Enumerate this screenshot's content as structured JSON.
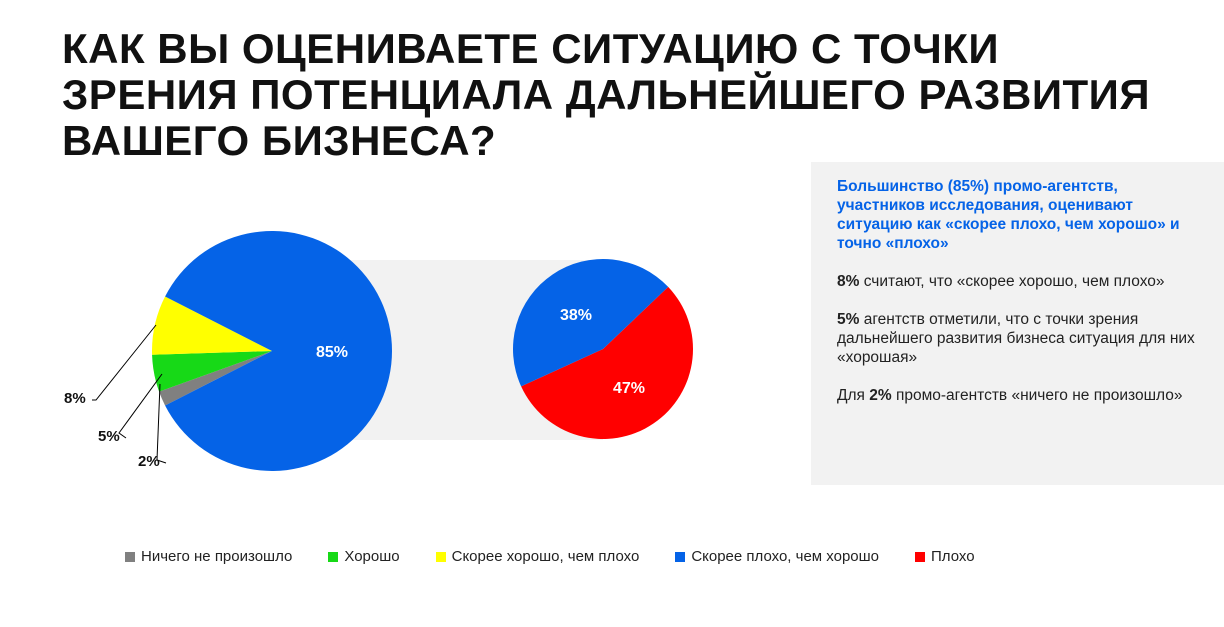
{
  "title": "Как вы оцениваете ситуацию с точки зрения потенциала дальнейшего развития вашего бизнеса?",
  "chart_data": {
    "type": "pie",
    "title": "Как вы оцениваете ситуацию с точки зрения потенциала дальнейшего развития вашего бизнеса?",
    "main_pie": [
      {
        "label": "Ничего не произошло",
        "value": 2,
        "color": "#808080",
        "text": "2%"
      },
      {
        "label": "Хорошо",
        "value": 5,
        "color": "#17d917",
        "text": "5%"
      },
      {
        "label": "Скорее хорошо, чем плохо",
        "value": 8,
        "color": "#ffff00",
        "text": "8%"
      },
      {
        "label": "Скорее плохо, чем хорошо + Плохо",
        "value": 85,
        "color": "#0563e7",
        "text": "85%"
      }
    ],
    "secondary_pie": [
      {
        "label": "Скорее плохо, чем хорошо",
        "value": 38,
        "color": "#0563e7",
        "text": "38%"
      },
      {
        "label": "Плохо",
        "value": 47,
        "color": "#ff0000",
        "text": "47%"
      }
    ],
    "legend": [
      {
        "label": "Ничего не произошло",
        "color": "#808080"
      },
      {
        "label": "Хорошо",
        "color": "#17d917"
      },
      {
        "label": "Скорее хорошо, чем плохо",
        "color": "#ffff00"
      },
      {
        "label": "Скорее плохо, чем хорошо",
        "color": "#0563e7"
      },
      {
        "label": "Плохо",
        "color": "#ff0000"
      }
    ],
    "legend_position": "bottom"
  },
  "panel": {
    "p1": "Большинство (85%) промо-агентств, участников исследования, оценивают ситуацию как «скорее плохо, чем хорошо» и точно «плохо»",
    "p2_bold": "8%",
    "p2": " считают, что «скорее хорошо, чем плохо»",
    "p3_bold": "5%",
    "p3": " агентств отметили, что с точки зрения дальнейшего развития бизнеса ситуация для них «хорошая»",
    "p4_pre": "Для ",
    "p4_bold": "2%",
    "p4": " промо-агентств «ничего не произошло»"
  }
}
